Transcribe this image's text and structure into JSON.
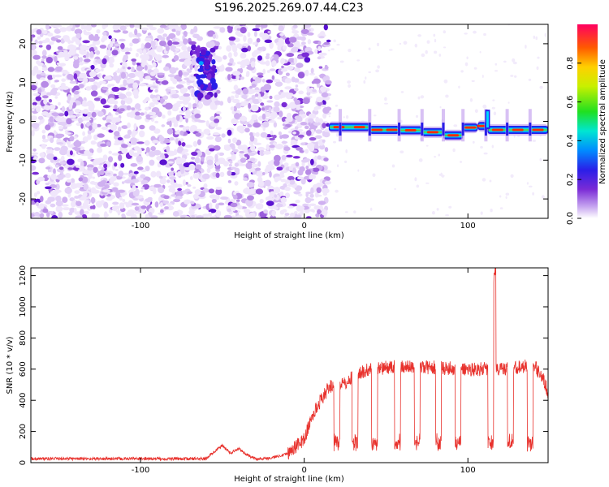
{
  "figure_title": "S196.2025.269.07.44.C23",
  "chart_data": [
    {
      "type": "heatmap",
      "title": "S196.2025.269.07.44.C23",
      "xlabel": "Height of straight line (km)",
      "ylabel": "Frequency (Hz)",
      "xlim": [
        -167,
        149
      ],
      "ylim": [
        -25,
        25
      ],
      "x_ticks": [
        -100,
        0,
        100
      ],
      "y_ticks": [
        -20,
        -10,
        0,
        10,
        20
      ],
      "colorbar": {
        "label": "Normalized spectral amplitude",
        "range": [
          0,
          1
        ],
        "ticks": [
          0.0,
          0.2,
          0.4,
          0.6,
          0.8
        ]
      },
      "noise_region_km": [
        -167,
        15
      ],
      "signal_line": {
        "x_start_km": 15,
        "segments": [
          {
            "x": [
              15,
              40
            ],
            "freq": -1.5
          },
          {
            "x": [
              40,
              58
            ],
            "freq": -2.2
          },
          {
            "x": [
              58,
              72
            ],
            "freq": -2.3
          },
          {
            "x": [
              72,
              85
            ],
            "freq": -2.8
          },
          {
            "x": [
              85,
              97
            ],
            "freq": -3.6
          },
          {
            "x": [
              97,
              106
            ],
            "freq": -1.6
          },
          {
            "x": [
              106,
              112
            ],
            "freq": -1.2
          },
          {
            "x": [
              112,
              149
            ],
            "freq": -2.2
          }
        ],
        "gaps_km": [
          22,
          40,
          58,
          72,
          85,
          97,
          111,
          124,
          138
        ],
        "spike": {
          "x": 112,
          "freq_range": [
            -2,
            3
          ]
        }
      }
    },
    {
      "type": "line",
      "xlabel": "Height of straight line (km)",
      "ylabel": "SNR (10 * v/v)",
      "xlim": [
        -167,
        149
      ],
      "ylim": [
        0,
        1250
      ],
      "x_ticks": [
        -100,
        0,
        100
      ],
      "y_ticks": [
        0,
        200,
        400,
        600,
        800,
        1000,
        1200
      ],
      "series": [
        {
          "name": "SNR",
          "color": "#e8322d",
          "x": [
            -167,
            -60,
            -55,
            -50,
            -45,
            -40,
            -35,
            -30,
            -20,
            -10,
            0,
            5,
            10,
            15,
            20,
            25,
            30,
            40,
            50,
            60,
            80,
            100,
            110,
            115,
            116,
            117,
            120,
            130,
            140,
            145,
            149
          ],
          "values": [
            25,
            25,
            70,
            110,
            60,
            90,
            50,
            25,
            30,
            60,
            150,
            300,
            400,
            480,
            520,
            500,
            560,
            600,
            610,
            615,
            610,
            600,
            600,
            600,
            1240,
            600,
            600,
            610,
            630,
            560,
            450
          ],
          "dips_km": [
            20,
            31,
            43,
            57,
            69,
            82,
            94,
            114,
            126,
            138
          ],
          "dip_value": 130
        }
      ]
    }
  ],
  "colors": {
    "line": "#e8322d",
    "noise": "#7a2bd6",
    "axis": "#000000"
  }
}
